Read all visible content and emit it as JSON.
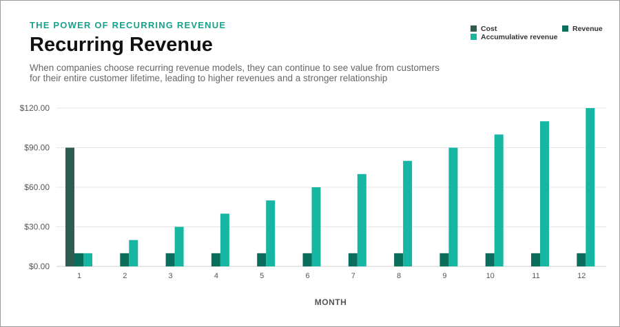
{
  "header": {
    "eyebrow": "THE POWER OF RECURRING REVENUE",
    "title": "Recurring Revenue",
    "subtitle": "When companies choose recurring revenue models, they can continue to see value from customers for their entire customer lifetime, leading to higher revenues and a stronger relationship"
  },
  "chart_data": {
    "type": "bar",
    "title": "Recurring Revenue",
    "xlabel": "MONTH",
    "ylabel": "",
    "ylim": [
      0,
      120
    ],
    "y_ticks": [
      0,
      30,
      60,
      90,
      120
    ],
    "y_tick_labels": [
      "$0.00",
      "$30.00",
      "$60.00",
      "$90.00",
      "$120.00"
    ],
    "categories": [
      "1",
      "2",
      "3",
      "4",
      "5",
      "6",
      "7",
      "8",
      "9",
      "10",
      "11",
      "12"
    ],
    "grid": true,
    "legend_position": "top-right",
    "series": [
      {
        "name": "Cost",
        "color": "#2f5c50",
        "values": [
          90,
          0,
          0,
          0,
          0,
          0,
          0,
          0,
          0,
          0,
          0,
          0
        ]
      },
      {
        "name": "Revenue",
        "color": "#0b6e5c",
        "values": [
          10,
          10,
          10,
          10,
          10,
          10,
          10,
          10,
          10,
          10,
          10,
          10
        ]
      },
      {
        "name": "Accumulative revenue",
        "color": "#16b6a3",
        "values": [
          10,
          20,
          30,
          40,
          50,
          60,
          70,
          80,
          90,
          100,
          110,
          120
        ]
      }
    ]
  }
}
